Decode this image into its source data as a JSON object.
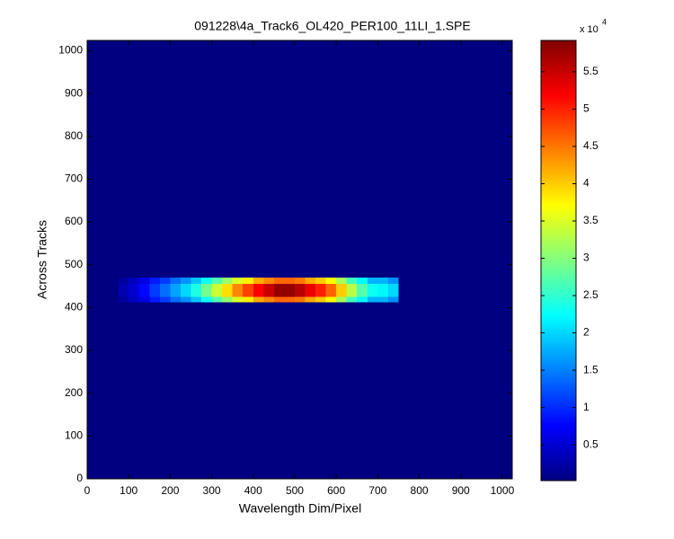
{
  "chart_data": {
    "type": "heatmap",
    "title": "091228\\4a_Track6_OL420_PER100_11LI_1.SPE",
    "x_label": "Wavelength Dim/Pixel",
    "y_label": "Across Tracks",
    "xlim": [
      0,
      1024
    ],
    "ylim": [
      0,
      1024
    ],
    "xticks": [
      0,
      100,
      200,
      300,
      400,
      500,
      600,
      700,
      800,
      900,
      1000
    ],
    "yticks": [
      0,
      100,
      200,
      300,
      400,
      500,
      600,
      700,
      800,
      900,
      1000
    ],
    "x_edges": [
      0,
      75,
      100,
      125,
      150,
      175,
      200,
      225,
      250,
      275,
      300,
      325,
      350,
      375,
      400,
      425,
      450,
      475,
      500,
      525,
      550,
      575,
      600,
      625,
      650,
      675,
      700,
      725,
      750,
      1024
    ],
    "y_edges": [
      0,
      412,
      425,
      440,
      455,
      470,
      1024
    ],
    "z": [
      [
        0.02,
        0.02,
        0.02,
        0.02,
        0.02,
        0.02,
        0.02,
        0.02,
        0.02,
        0.02,
        0.02,
        0.02,
        0.02,
        0.02,
        0.02,
        0.02,
        0.02,
        0.02,
        0.02,
        0.02,
        0.02,
        0.02,
        0.02,
        0.02,
        0.02,
        0.02,
        0.02,
        0.02,
        0.02
      ],
      [
        0.02,
        0.2,
        0.4,
        0.6,
        0.9,
        1.1,
        1.4,
        1.6,
        1.9,
        2.3,
        2.7,
        3.1,
        3.5,
        3.8,
        4.2,
        4.4,
        4.6,
        4.6,
        4.5,
        4.2,
        4.0,
        3.7,
        3.2,
        2.6,
        2.2,
        1.8,
        1.8,
        1.6,
        0.02
      ],
      [
        0.02,
        0.3,
        0.5,
        0.8,
        1.1,
        1.4,
        1.7,
        2.0,
        2.4,
        2.9,
        3.4,
        3.9,
        4.4,
        4.8,
        5.2,
        5.5,
        5.8,
        5.8,
        5.6,
        5.3,
        5.0,
        4.6,
        4.0,
        3.3,
        2.7,
        2.3,
        2.2,
        2.0,
        0.02
      ],
      [
        0.02,
        0.3,
        0.5,
        0.8,
        1.1,
        1.4,
        1.7,
        2.0,
        2.4,
        2.9,
        3.4,
        3.9,
        4.4,
        4.8,
        5.2,
        5.5,
        5.8,
        5.8,
        5.6,
        5.3,
        5.0,
        4.6,
        4.0,
        3.3,
        2.7,
        2.3,
        2.2,
        2.0,
        0.02
      ],
      [
        0.02,
        0.2,
        0.4,
        0.6,
        0.9,
        1.1,
        1.4,
        1.6,
        1.9,
        2.3,
        2.7,
        3.1,
        3.5,
        3.8,
        4.2,
        4.4,
        4.6,
        4.6,
        4.5,
        4.2,
        4.0,
        3.7,
        3.2,
        2.6,
        2.2,
        1.8,
        1.8,
        1.6,
        0.02
      ],
      [
        0.02,
        0.02,
        0.02,
        0.02,
        0.02,
        0.02,
        0.02,
        0.02,
        0.02,
        0.02,
        0.02,
        0.02,
        0.02,
        0.02,
        0.02,
        0.02,
        0.02,
        0.02,
        0.02,
        0.02,
        0.02,
        0.02,
        0.02,
        0.02,
        0.02,
        0.02,
        0.02,
        0.02,
        0.02
      ]
    ],
    "colormap": "jet",
    "clim": [
      0.02,
      5.92
    ],
    "colorbar_ticks": [
      0.5,
      1,
      1.5,
      2,
      2.5,
      3,
      3.5,
      4,
      4.5,
      5,
      5.5
    ],
    "colorbar_scale": "x 10",
    "colorbar_exponent": "4"
  }
}
